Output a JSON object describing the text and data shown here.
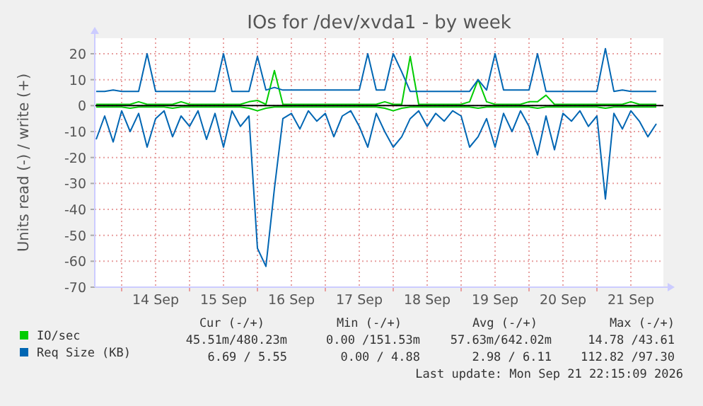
{
  "chart_data": {
    "type": "line",
    "title": "IOs for /dev/xvda1 - by week",
    "ylabel": "Units read (-) / write (+)",
    "x": [
      "2026-09-13T15:00",
      "2026-09-13T18:00",
      "2026-09-13T21:00",
      "2026-09-14T00:00",
      "2026-09-14T03:00",
      "2026-09-14T06:00",
      "2026-09-14T09:00",
      "2026-09-14T12:00",
      "2026-09-14T15:00",
      "2026-09-14T18:00",
      "2026-09-14T21:00",
      "2026-09-15T00:00",
      "2026-09-15T03:00",
      "2026-09-15T06:00",
      "2026-09-15T09:00",
      "2026-09-15T12:00",
      "2026-09-15T15:00",
      "2026-09-15T18:00",
      "2026-09-15T21:00",
      "2026-09-16T00:00",
      "2026-09-16T03:00",
      "2026-09-16T06:00",
      "2026-09-16T09:00",
      "2026-09-16T12:00",
      "2026-09-16T15:00",
      "2026-09-16T18:00",
      "2026-09-16T21:00",
      "2026-09-17T00:00",
      "2026-09-17T03:00",
      "2026-09-17T06:00",
      "2026-09-17T09:00",
      "2026-09-17T12:00",
      "2026-09-17T15:00",
      "2026-09-17T18:00",
      "2026-09-17T21:00",
      "2026-09-18T00:00",
      "2026-09-18T03:00",
      "2026-09-18T06:00",
      "2026-09-18T09:00",
      "2026-09-18T12:00",
      "2026-09-18T15:00",
      "2026-09-18T18:00",
      "2026-09-18T21:00",
      "2026-09-19T00:00",
      "2026-09-19T03:00",
      "2026-09-19T06:00",
      "2026-09-19T09:00",
      "2026-09-19T12:00",
      "2026-09-19T15:00",
      "2026-09-19T18:00",
      "2026-09-19T21:00",
      "2026-09-20T00:00",
      "2026-09-20T03:00",
      "2026-09-20T06:00",
      "2026-09-20T09:00",
      "2026-09-20T12:00",
      "2026-09-20T15:00",
      "2026-09-20T18:00",
      "2026-09-20T21:00",
      "2026-09-21T00:00",
      "2026-09-21T03:00",
      "2026-09-21T06:00",
      "2026-09-21T09:00",
      "2026-09-21T12:00",
      "2026-09-21T15:00",
      "2026-09-21T18:00",
      "2026-09-21T21:00"
    ],
    "series": [
      {
        "color": "#0066b3",
        "values": [
          -13,
          -4,
          -14,
          -2,
          -10,
          -3,
          -16,
          -5,
          -2,
          -12,
          -4,
          -8,
          -2,
          -13,
          -3,
          -16,
          -2,
          -8,
          -4,
          -55,
          -62,
          -32,
          -5,
          -3,
          -9,
          -2,
          -6,
          -3,
          -12,
          -4,
          -2,
          -8,
          -16,
          -3,
          -10,
          -16,
          -12,
          -5,
          -2,
          -8,
          -3,
          -6,
          -2,
          -4,
          -16,
          -12,
          -5,
          -16,
          -3,
          -10,
          -2,
          -8,
          -19,
          -4,
          -17,
          -3,
          -6,
          -2,
          -8,
          -4,
          -36,
          -3,
          -9,
          -2,
          -6,
          -12,
          -7
        ]
      },
      {
        "color": "#00cc00",
        "values": [
          -0.5,
          -0.5,
          -0.5,
          -0.5,
          -1,
          -0.5,
          -0.5,
          -0.5,
          -0.5,
          -1,
          -0.5,
          -0.5,
          -0.5,
          -0.5,
          -0.5,
          -0.5,
          -0.5,
          -0.5,
          -1,
          -2,
          -1,
          -0.5,
          -0.5,
          -0.5,
          -0.5,
          -0.5,
          -0.5,
          -0.5,
          -0.5,
          -0.5,
          -0.5,
          -0.5,
          -0.5,
          -0.5,
          -1,
          -2,
          -1,
          -0.5,
          -0.5,
          -0.5,
          -0.5,
          -0.5,
          -0.5,
          -0.5,
          -0.5,
          -1,
          -0.5,
          -0.5,
          -0.5,
          -0.5,
          -0.5,
          -0.5,
          -1,
          -0.5,
          -0.5,
          -0.5,
          -0.5,
          -0.5,
          -0.5,
          -0.5,
          -1,
          -0.5,
          -0.5,
          -0.5,
          -0.5,
          -0.5,
          -0.5
        ]
      },
      {
        "name": "IO/sec",
        "color": "#00cc00",
        "values": [
          0.5,
          0.5,
          0.5,
          0.5,
          0.5,
          1.5,
          0.5,
          0.5,
          0.5,
          0.5,
          1.5,
          0.5,
          0.5,
          0.5,
          0.5,
          0.5,
          0.5,
          0.5,
          1.5,
          2,
          0.5,
          13.5,
          0.5,
          0.5,
          0.5,
          0.5,
          0.5,
          0.5,
          0.5,
          0.5,
          0.5,
          0.5,
          0.5,
          0.5,
          1.5,
          0.5,
          0.5,
          19,
          0.5,
          0.5,
          0.5,
          0.5,
          0.5,
          0.5,
          1.5,
          10,
          1.5,
          0.5,
          0.5,
          0.5,
          0.5,
          1.5,
          1.5,
          4,
          0.5,
          0.5,
          0.5,
          0.5,
          0.5,
          0.5,
          0.5,
          0.5,
          0.5,
          1.5,
          0.5,
          0.5,
          0.5
        ]
      },
      {
        "name": "Req Size (KB)",
        "color": "#0066b3",
        "values": [
          5.5,
          5.5,
          6,
          5.5,
          5.5,
          5.5,
          20,
          5.5,
          5.5,
          5.5,
          5.5,
          5.5,
          5.5,
          5.5,
          5.5,
          20,
          5.5,
          5.5,
          5.5,
          19,
          6,
          7,
          6,
          6,
          6,
          6,
          6,
          6,
          6,
          6,
          6,
          6,
          20,
          6,
          6,
          20,
          13,
          5.5,
          5.5,
          5.5,
          5.5,
          5.5,
          5.5,
          5.5,
          5.5,
          10,
          6,
          20,
          6,
          6,
          6,
          6,
          20,
          5.5,
          5.5,
          5.5,
          5.5,
          5.5,
          5.5,
          5.5,
          22,
          5.5,
          6,
          5.5,
          5.5,
          5.5,
          5.5
        ]
      }
    ],
    "xlim": [
      "2026-09-13T14:30",
      "2026-09-21T23:30"
    ],
    "xticks": [
      {
        "value": "2026-09-14T00:00",
        "label": null
      },
      {
        "value": "2026-09-14T12:00",
        "label": "14 Sep"
      },
      {
        "value": "2026-09-15T00:00",
        "label": null
      },
      {
        "value": "2026-09-15T12:00",
        "label": "15 Sep"
      },
      {
        "value": "2026-09-16T00:00",
        "label": null
      },
      {
        "value": "2026-09-16T12:00",
        "label": "16 Sep"
      },
      {
        "value": "2026-09-17T00:00",
        "label": null
      },
      {
        "value": "2026-09-17T12:00",
        "label": "17 Sep"
      },
      {
        "value": "2026-09-18T00:00",
        "label": null
      },
      {
        "value": "2026-09-18T12:00",
        "label": "18 Sep"
      },
      {
        "value": "2026-09-19T00:00",
        "label": null
      },
      {
        "value": "2026-09-19T12:00",
        "label": "19 Sep"
      },
      {
        "value": "2026-09-20T00:00",
        "label": null
      },
      {
        "value": "2026-09-20T12:00",
        "label": "20 Sep"
      },
      {
        "value": "2026-09-21T00:00",
        "label": null
      },
      {
        "value": "2026-09-21T12:00",
        "label": "21 Sep"
      }
    ],
    "ylim": [
      -70,
      26
    ],
    "yticks": [
      -70,
      -60,
      -50,
      -40,
      -30,
      -20,
      -10,
      0,
      10,
      20
    ],
    "grid": true,
    "legend": "bottom",
    "annotations": [
      "Cur (-/+)",
      "Min (-/+)",
      "Avg (-/+)",
      "Max (-/+)",
      "45.51m/480.23m",
      "0.00 /151.53m",
      "57.63m/642.02m",
      "14.78 /43.61",
      "6.69 / 5.55",
      "0.00 / 4.88",
      "2.98 / 6.11",
      "112.82 /97.30",
      "Last update: Mon Sep 21 22:15:09 2026"
    ]
  }
}
